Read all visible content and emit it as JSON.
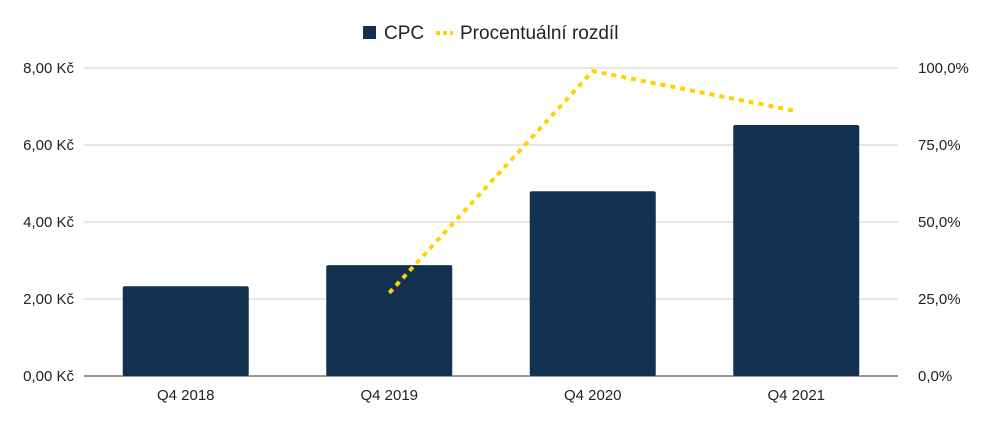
{
  "chart_data": {
    "type": "bar",
    "categories": [
      "Q4 2018",
      "Q4 2019",
      "Q4 2020",
      "Q4 2021"
    ],
    "series": [
      {
        "name": "CPC",
        "type": "bar",
        "axis": "left",
        "values": [
          2.33,
          2.88,
          4.8,
          6.52
        ],
        "color": "#12304f"
      },
      {
        "name": "Procentuální rozdíl",
        "type": "line",
        "style": "dotted",
        "axis": "right",
        "values": [
          null,
          0.27,
          0.99,
          0.86
        ],
        "color": "#ffd200"
      }
    ],
    "y_left": {
      "min": 0,
      "max": 8,
      "ticks": [
        "0,00 Kč",
        "2,00 Kč",
        "4,00 Kč",
        "6,00 Kč",
        "8,00 Kč"
      ]
    },
    "y_right": {
      "min": 0,
      "max": 1,
      "ticks": [
        "0,0%",
        "25,0%",
        "50,0%",
        "75,0%",
        "100,0%"
      ]
    },
    "grid": true,
    "legend_position": "top-center"
  }
}
